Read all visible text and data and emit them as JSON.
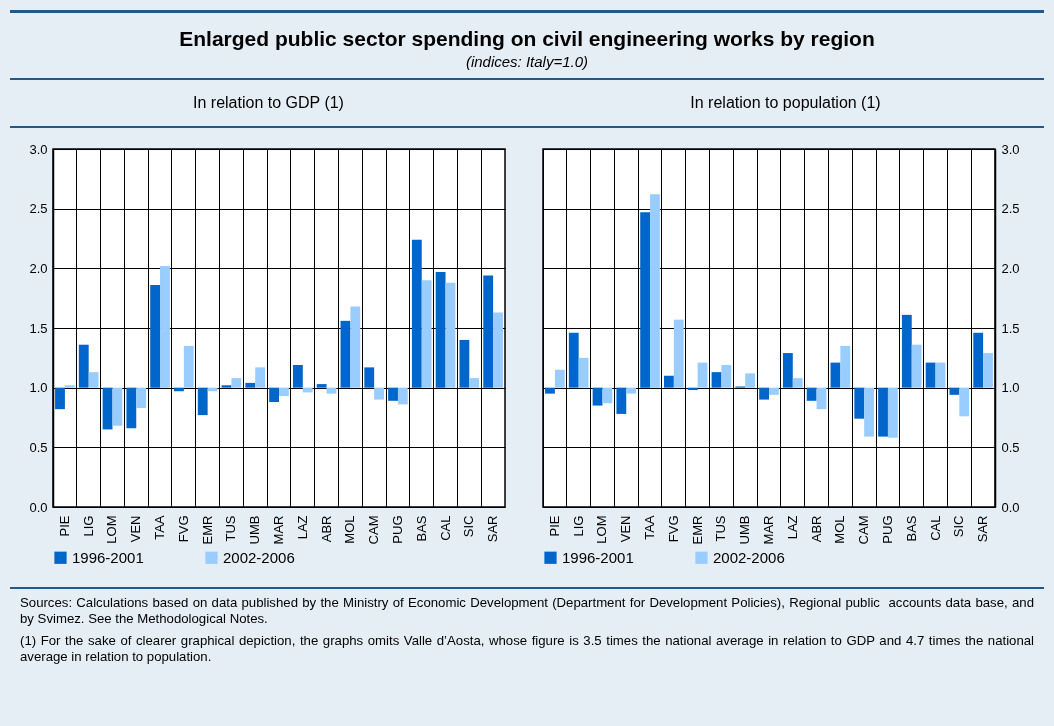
{
  "chart_data": [
    {
      "type": "bar",
      "title": "Enlarged public sector spending on civil engineering works by region",
      "subtitle": "(indices: Italy=1.0)",
      "annotations": [
        "In relation to GDP (1)",
        "Sources: Calculations based on data published by the Ministry of Economic Development (Department for Development Policies), Regional public  accounts data base, and by Svimez. See the Methodological Notes.",
        "(1) For the sake of clearer graphical depiction, the graphs omits Valle d’Aosta, whose figure is 3.5 times the national average in relation to GDP and 4.7 times the national average in relation to population."
      ],
      "categories": [
        "PIE",
        "LIG",
        "LOM",
        "VEN",
        "TAA",
        "FVG",
        "EMR",
        "TUS",
        "UMB",
        "MAR",
        "LAZ",
        "ABR",
        "MOL",
        "CAM",
        "PUG",
        "BAS",
        "CAL",
        "SIC",
        "SAR"
      ],
      "series": [
        {
          "name": "1996-2001",
          "color": "#0066cc",
          "base": [
            1,
            1,
            1,
            1,
            1,
            1,
            1,
            1,
            1,
            1,
            1,
            1,
            1,
            1,
            1,
            1,
            1,
            1,
            1
          ],
          "values": [
            -0.18,
            0.36,
            -0.35,
            -0.34,
            0.86,
            -0.03,
            -0.23,
            0.02,
            0.04,
            -0.12,
            0.19,
            0.03,
            0.56,
            0.17,
            -0.11,
            1.24,
            0.97,
            0.4,
            0.94
          ]
        },
        {
          "name": "2002-2006",
          "color": "#99ccff",
          "base": [
            1,
            1,
            1,
            1,
            1,
            1,
            1,
            1,
            1,
            1,
            1,
            1,
            1,
            1,
            1,
            1,
            1,
            1,
            1
          ],
          "values": [
            0.02,
            0.13,
            -0.32,
            -0.17,
            1.02,
            0.35,
            -0.03,
            0.08,
            0.17,
            -0.07,
            -0.04,
            -0.05,
            0.68,
            -0.1,
            -0.14,
            0.9,
            0.88,
            0.08,
            0.63
          ]
        }
      ],
      "ylim": [
        0,
        3
      ],
      "yticks": [
        {
          "value": 0,
          "label": "0.0"
        },
        {
          "value": 0.5,
          "label": "0.5"
        },
        {
          "value": 1,
          "label": "1.0"
        },
        {
          "value": 1.5,
          "label": "1.5"
        },
        {
          "value": 2,
          "label": "2.0"
        },
        {
          "value": 2.5,
          "label": "2.5"
        },
        {
          "value": 3,
          "label": "3.0"
        }
      ],
      "grid": true,
      "legend": "bottom"
    },
    {
      "type": "bar",
      "annotations": [
        "In relation to population (1)"
      ],
      "categories": [
        "PIE",
        "LIG",
        "LOM",
        "VEN",
        "TAA",
        "FVG",
        "EMR",
        "TUS",
        "UMB",
        "MAR",
        "LAZ",
        "ABR",
        "MOL",
        "CAM",
        "PUG",
        "BAS",
        "CAL",
        "SIC",
        "SAR"
      ],
      "series": [
        {
          "name": "1996-2001",
          "color": "#0066cc",
          "base": [
            1,
            1,
            1,
            1,
            1,
            1,
            1,
            1,
            1,
            1,
            1,
            1,
            1,
            1,
            1,
            1,
            1,
            1,
            1
          ],
          "values": [
            -0.05,
            0.46,
            -0.15,
            -0.22,
            1.47,
            0.1,
            -0.02,
            0.13,
            0.01,
            -0.1,
            0.29,
            -0.11,
            0.21,
            -0.26,
            -0.41,
            0.61,
            0.21,
            -0.06,
            0.46
          ]
        },
        {
          "name": "2002-2006",
          "color": "#99ccff",
          "base": [
            1,
            1,
            1,
            1,
            1,
            1,
            1,
            1,
            1,
            1,
            1,
            1,
            1,
            1,
            1,
            1,
            1,
            1,
            1
          ],
          "values": [
            0.15,
            0.25,
            -0.13,
            -0.05,
            1.62,
            0.57,
            0.21,
            0.19,
            0.12,
            -0.06,
            0.08,
            -0.18,
            0.35,
            -0.41,
            -0.42,
            0.36,
            0.21,
            -0.24,
            0.29
          ]
        }
      ],
      "ylim": [
        0,
        3
      ],
      "yticks": [
        {
          "value": 0,
          "label": "0.0"
        },
        {
          "value": 0.5,
          "label": "0.5"
        },
        {
          "value": 1,
          "label": "1.0"
        },
        {
          "value": 1.5,
          "label": "1.5"
        },
        {
          "value": 2,
          "label": "2.0"
        },
        {
          "value": 2.5,
          "label": "2.5"
        },
        {
          "value": 3,
          "label": "3.0"
        }
      ],
      "grid": true,
      "legend": "bottom"
    }
  ]
}
